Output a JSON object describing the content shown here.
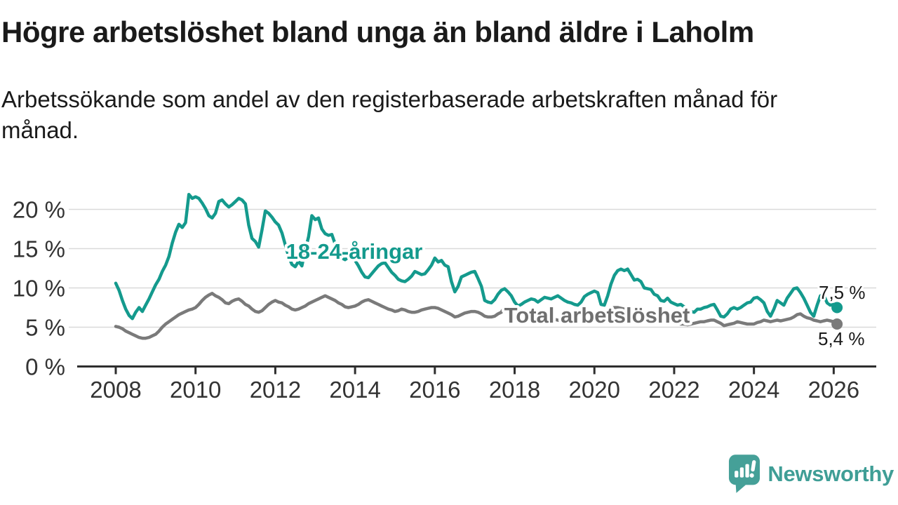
{
  "header": {
    "title": "Högre arbetslöshet bland unga än bland äldre i Laholm",
    "subtitle": "Arbetssökande som andel av den registerbaserade arbetskraften månad för månad."
  },
  "footer": {
    "brand": "Newsworthy"
  },
  "colors": {
    "young_line": "#149a8d",
    "total_line": "#7a7a7a",
    "total_label": "#6f6f6f",
    "axis": "#2e2e2e",
    "grid": "#d9d9d9",
    "tick_text": "#333333",
    "end_label_text": "#1a1a1a",
    "brand_teal": "#3f9e96",
    "background": "#ffffff"
  },
  "chart_data": {
    "type": "line",
    "title": "Högre arbetslöshet bland unga än bland äldre i Laholm",
    "subtitle": "Arbetssökande som andel av den registerbaserade arbetskraften månad för månad.",
    "frequency": "monthly",
    "x_start_year": 2008,
    "x_start_month": 1,
    "x_end_year": 2026,
    "x_end_month": 2,
    "grid": true,
    "x_axis": {
      "tick_years": [
        2008,
        2010,
        2012,
        2014,
        2016,
        2018,
        2020,
        2022,
        2024,
        2026
      ],
      "tick_labels": [
        "2008",
        "2010",
        "2012",
        "2014",
        "2016",
        "2018",
        "2020",
        "2022",
        "2024",
        "2026"
      ]
    },
    "y_axis": {
      "ticks": [
        0,
        5,
        10,
        15,
        20
      ],
      "tick_labels": [
        "0 %",
        "5 %",
        "10 %",
        "15 %",
        "20 %"
      ],
      "ylim": [
        0,
        22.5
      ]
    },
    "series": [
      {
        "name": "18-24-åringar",
        "color_key": "young_line",
        "end_label": "7,5 %",
        "last_value": 7.5,
        "values": [
          10.6,
          9.7,
          8.4,
          7.3,
          6.5,
          6.1,
          6.9,
          7.5,
          7.0,
          7.8,
          8.6,
          9.5,
          10.4,
          11.1,
          12.1,
          12.9,
          14.0,
          15.7,
          17.1,
          18.1,
          17.7,
          18.3,
          21.9,
          21.4,
          21.6,
          21.4,
          20.8,
          20.1,
          19.2,
          18.9,
          19.5,
          21.0,
          21.2,
          20.7,
          20.3,
          20.6,
          21.0,
          21.4,
          21.2,
          20.7,
          18.0,
          16.3,
          15.9,
          15.2,
          17.4,
          19.8,
          19.5,
          19.0,
          18.4,
          18.0,
          17.0,
          15.5,
          14.0,
          13.0,
          12.7,
          13.4,
          12.8,
          14.8,
          16.5,
          19.2,
          18.7,
          18.9,
          17.5,
          16.9,
          16.7,
          16.8,
          15.6,
          14.4,
          13.8,
          13.6,
          13.9,
          13.8,
          13.5,
          12.8,
          12.0,
          11.4,
          11.3,
          11.8,
          12.3,
          12.8,
          13.1,
          13.2,
          12.6,
          12.0,
          11.6,
          11.1,
          10.9,
          10.8,
          11.1,
          11.5,
          12.1,
          11.9,
          11.7,
          11.8,
          12.3,
          12.9,
          13.8,
          13.3,
          13.5,
          12.9,
          12.7,
          10.8,
          9.5,
          10.2,
          11.4,
          11.6,
          11.8,
          12.0,
          12.1,
          11.2,
          10.2,
          8.4,
          8.2,
          8.1,
          8.5,
          9.2,
          9.7,
          9.9,
          9.5,
          9.0,
          8.2,
          7.7,
          7.9,
          8.2,
          8.4,
          8.6,
          8.5,
          8.2,
          8.5,
          8.8,
          8.7,
          8.6,
          8.8,
          9.0,
          8.7,
          8.4,
          8.2,
          8.1,
          7.9,
          7.8,
          8.2,
          8.9,
          9.2,
          9.4,
          9.6,
          9.4,
          7.9,
          7.8,
          9.0,
          10.5,
          11.6,
          12.2,
          12.4,
          12.2,
          12.4,
          11.7,
          11.0,
          11.1,
          10.8,
          10.0,
          9.9,
          9.8,
          9.2,
          9.0,
          8.4,
          8.3,
          8.7,
          8.2,
          8.0,
          7.8,
          7.9,
          7.6,
          7.3,
          7.0,
          6.9,
          7.3,
          7.3,
          7.5,
          7.6,
          7.8,
          7.9,
          7.2,
          6.4,
          6.3,
          6.7,
          7.3,
          7.5,
          7.3,
          7.5,
          7.8,
          8.1,
          8.2,
          8.7,
          8.8,
          8.5,
          8.1,
          7.0,
          6.4,
          7.3,
          8.4,
          8.1,
          7.8,
          8.7,
          9.3,
          9.9,
          10.0,
          9.4,
          8.7,
          7.8,
          6.9,
          6.4,
          7.8,
          9.0,
          9.1,
          8.1,
          7.8,
          7.9,
          7.5
        ]
      },
      {
        "name": "Total arbetslöshet",
        "color_key": "total_line",
        "end_label": "5,4 %",
        "last_value": 5.4,
        "values": [
          5.1,
          5.0,
          4.8,
          4.5,
          4.3,
          4.1,
          3.9,
          3.7,
          3.6,
          3.6,
          3.7,
          3.9,
          4.1,
          4.5,
          5.0,
          5.4,
          5.7,
          6.0,
          6.3,
          6.6,
          6.8,
          7.0,
          7.2,
          7.3,
          7.5,
          7.9,
          8.4,
          8.8,
          9.1,
          9.3,
          9.0,
          8.8,
          8.5,
          8.1,
          8.0,
          8.3,
          8.5,
          8.6,
          8.3,
          7.9,
          7.7,
          7.3,
          7.0,
          6.9,
          7.1,
          7.5,
          7.9,
          8.2,
          8.4,
          8.2,
          8.1,
          7.8,
          7.6,
          7.3,
          7.2,
          7.3,
          7.5,
          7.7,
          8.0,
          8.2,
          8.4,
          8.6,
          8.8,
          9.0,
          8.8,
          8.6,
          8.4,
          8.1,
          7.9,
          7.6,
          7.5,
          7.6,
          7.7,
          7.9,
          8.2,
          8.4,
          8.5,
          8.3,
          8.1,
          7.9,
          7.7,
          7.5,
          7.3,
          7.2,
          7.0,
          7.1,
          7.3,
          7.2,
          7.0,
          6.9,
          6.9,
          7.0,
          7.2,
          7.3,
          7.4,
          7.5,
          7.5,
          7.4,
          7.2,
          7.0,
          6.8,
          6.6,
          6.3,
          6.4,
          6.6,
          6.8,
          6.9,
          7.0,
          7.0,
          6.9,
          6.7,
          6.4,
          6.3,
          6.3,
          6.4,
          6.7,
          6.9,
          7.6,
          7.5,
          7.2,
          7.2,
          7.0,
          6.9,
          6.6,
          6.4,
          6.2,
          6.1,
          6.0,
          6.0,
          6.1,
          6.1,
          6.0,
          6.0,
          5.9,
          5.8,
          5.8,
          5.9,
          5.9,
          6.0,
          6.0,
          6.1,
          6.1,
          6.2,
          6.2,
          6.2,
          6.3,
          6.6,
          6.9,
          7.2,
          7.4,
          7.5,
          7.5,
          7.4,
          7.3,
          7.1,
          7.0,
          6.9,
          6.8,
          6.6,
          6.4,
          6.2,
          6.1,
          6.0,
          5.9,
          5.8,
          5.8,
          5.7,
          5.7,
          5.6,
          5.5,
          5.4,
          5.4,
          5.3,
          5.4,
          5.5,
          5.6,
          5.7,
          5.7,
          5.8,
          5.9,
          5.9,
          5.7,
          5.5,
          5.2,
          5.3,
          5.4,
          5.5,
          5.7,
          5.6,
          5.5,
          5.4,
          5.4,
          5.4,
          5.6,
          5.7,
          5.9,
          5.8,
          5.7,
          5.8,
          5.9,
          5.8,
          5.9,
          6.0,
          6.1,
          6.3,
          6.6,
          6.7,
          6.4,
          6.2,
          6.1,
          5.9,
          5.8,
          5.7,
          5.8,
          5.9,
          5.8,
          5.7,
          5.4
        ]
      }
    ]
  }
}
